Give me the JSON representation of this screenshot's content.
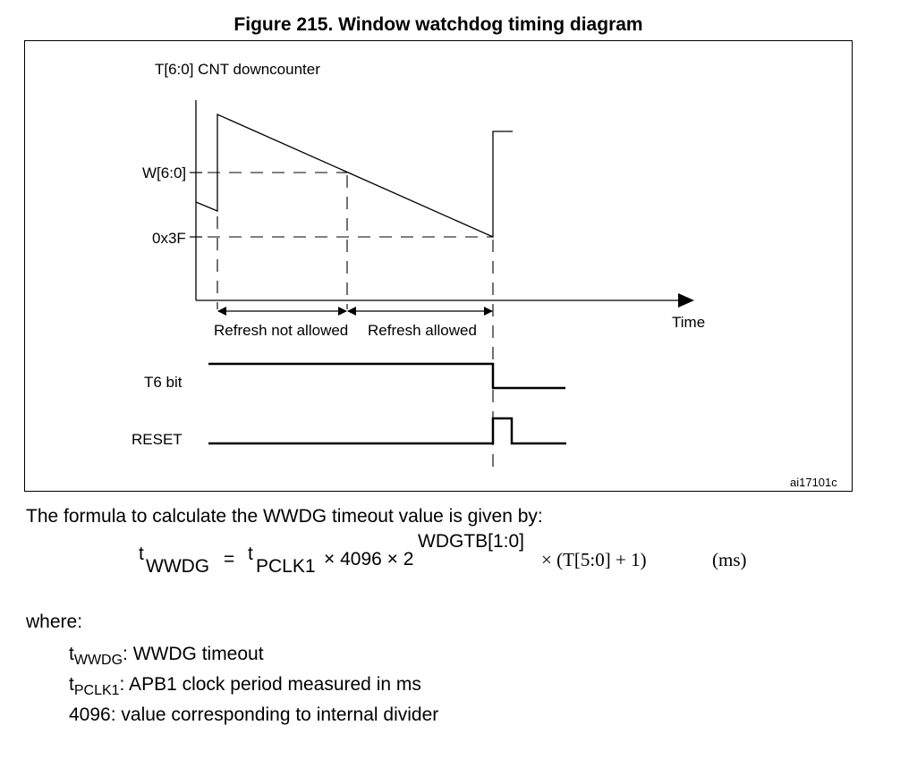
{
  "figure": {
    "title": "Figure 215. Window watchdog timing diagram",
    "y_axis_label": "T[6:0] CNT downcounter",
    "level_w": "W[6:0]",
    "level_3f": "0x3F",
    "x_axis_label": "Time",
    "region_not_allowed": "Refresh not allowed",
    "region_allowed": "Refresh allowed",
    "signal_t6": "T6 bit",
    "signal_reset": "RESET",
    "figure_id": "ai17101c"
  },
  "text": {
    "intro": "The formula to calculate the WWDG timeout value is given by:",
    "where": "where:"
  },
  "formula": {
    "lhs": "t",
    "lhs_sub": "WWDG",
    "equals": "=",
    "t_pclk": "t",
    "t_pclk_sub": "PCLK1",
    "times_4096_times_2": "× 4096 × 2",
    "exponent": "WDGTB[1:0]",
    "tail": "× (T[5:0] + 1)",
    "unit": "(ms)"
  },
  "definitions": [
    {
      "sym": "t",
      "sub": "WWDG",
      "desc": ": WWDG timeout"
    },
    {
      "sym": "t",
      "sub": "PCLK1",
      "desc": ": APB1 clock period measured in ms"
    },
    {
      "sym": "4096",
      "sub": "",
      "desc": ": value corresponding to internal divider"
    }
  ]
}
